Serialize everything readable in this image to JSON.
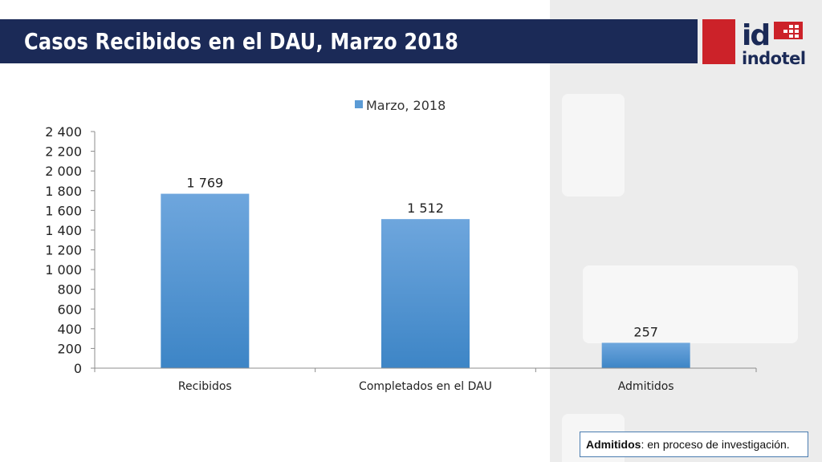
{
  "slide": {
    "title": "Casos Recibidos en el DAU, Marzo 2018"
  },
  "logo": {
    "text": "indotel",
    "mark_text": "id",
    "brand_red": "#cc2229"
  },
  "note": {
    "bold_label": "Admitidos",
    "text": ": en proceso de investigación."
  },
  "chart_data": {
    "type": "bar",
    "categories": [
      "Recibidos",
      "Completados en el DAU",
      "Admitidos"
    ],
    "series": [
      {
        "name": "Marzo, 2018",
        "values": [
          1769,
          1512,
          257
        ],
        "color": "#5b9bd5"
      }
    ],
    "data_labels": [
      "1 769",
      "1 512",
      "257"
    ],
    "y_ticks": [
      0,
      200,
      400,
      600,
      800,
      1000,
      1200,
      1400,
      1600,
      1800,
      2000,
      2200,
      2400
    ],
    "y_tick_labels": [
      "0",
      "200",
      "400",
      "600",
      "800",
      "1 000",
      "1 200",
      "1 400",
      "1 600",
      "1 800",
      "2 000",
      "2 200",
      "2 400"
    ],
    "ylim": [
      0,
      2400
    ],
    "title": "",
    "xlabel": "",
    "ylabel": "",
    "grid": false,
    "legend_position": "top"
  }
}
